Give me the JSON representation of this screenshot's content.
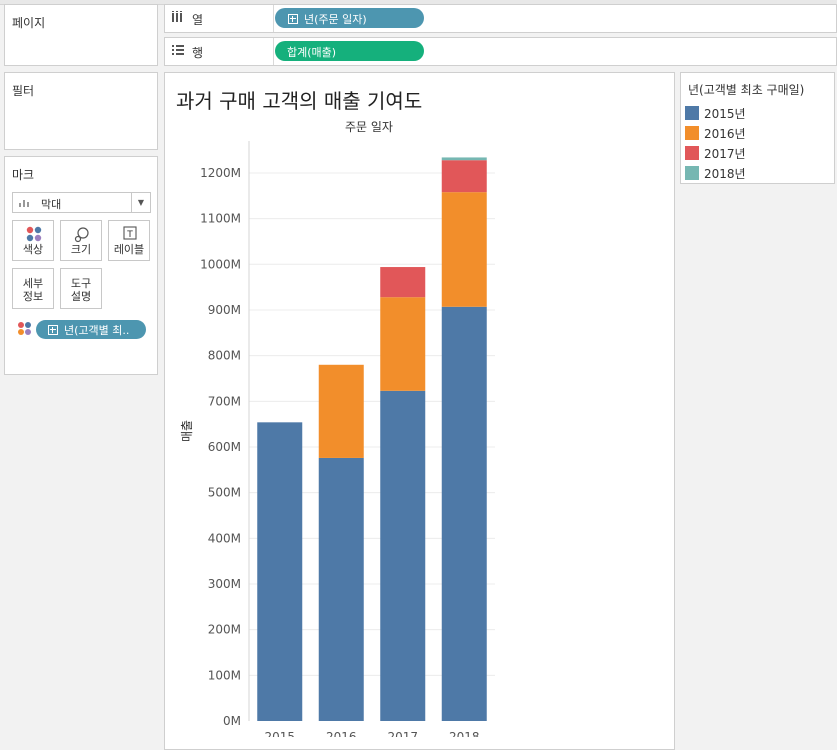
{
  "panels": {
    "pages_title": "페이지",
    "filters_title": "필터",
    "marks_title": "마크",
    "mark_type": "막대",
    "buttons": {
      "color": "색상",
      "size": "크기",
      "label": "레이블",
      "detail_1": "세부",
      "detail_2": "정보",
      "tooltip_1": "도구",
      "tooltip_2": "설명"
    },
    "marks_pill": "년(고객별 최.."
  },
  "shelves": {
    "columns_label": "열",
    "columns_pill": "년(주문 일자)",
    "rows_label": "행",
    "rows_pill": "합계(매출)"
  },
  "colors": {
    "pill_blue": "#4d96b0",
    "pill_green": "#15b07c"
  },
  "legend": {
    "title": "년(고객별 최초 구매일)",
    "items": [
      {
        "label": "2015년",
        "color": "#4e79a7"
      },
      {
        "label": "2016년",
        "color": "#f28e2b"
      },
      {
        "label": "2017년",
        "color": "#e15759"
      },
      {
        "label": "2018년",
        "color": "#76b7b2"
      }
    ]
  },
  "chart_data": {
    "type": "bar",
    "stacked": true,
    "title": "과거 구매 고객의 매출 기여도",
    "column_header": "주문 일자",
    "ylabel": "매출",
    "categories": [
      "2015",
      "2016",
      "2017",
      "2018"
    ],
    "ylim": [
      0,
      1270
    ],
    "yticks": [
      0,
      100,
      200,
      300,
      400,
      500,
      600,
      700,
      800,
      900,
      1000,
      1100,
      1200
    ],
    "ytick_labels": [
      "0M",
      "100M",
      "200M",
      "300M",
      "400M",
      "500M",
      "600M",
      "700M",
      "800M",
      "900M",
      "1000M",
      "1100M",
      "1200M"
    ],
    "series": [
      {
        "name": "2015년",
        "color": "#4e79a7",
        "values": [
          654,
          576,
          723,
          907
        ]
      },
      {
        "name": "2016년",
        "color": "#f28e2b",
        "values": [
          0,
          204,
          205,
          251
        ]
      },
      {
        "name": "2017년",
        "color": "#e15759",
        "values": [
          0,
          0,
          66,
          70
        ]
      },
      {
        "name": "2018년",
        "color": "#76b7b2",
        "values": [
          0,
          0,
          0,
          6
        ]
      }
    ]
  }
}
